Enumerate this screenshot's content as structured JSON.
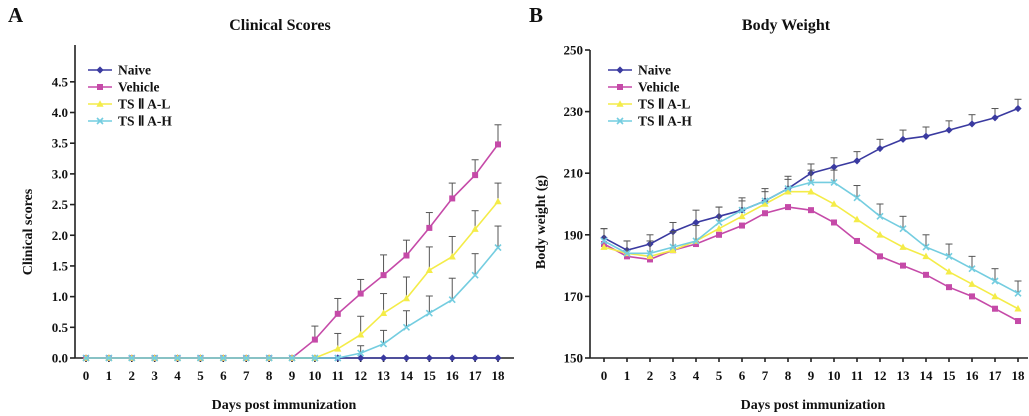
{
  "chart_data": [
    {
      "panel": "A",
      "type": "line",
      "title": "Clinical Scores",
      "xlabel": "Days post immunization",
      "ylabel": "Clinical scores",
      "x": [
        0,
        1,
        2,
        3,
        4,
        5,
        6,
        7,
        8,
        9,
        10,
        11,
        12,
        13,
        14,
        15,
        16,
        17,
        18
      ],
      "x_ticks": [
        "0",
        "1",
        "2",
        "3",
        "4",
        "5",
        "6",
        "7",
        "8",
        "9",
        "10",
        "11",
        "12",
        "13",
        "14",
        "15",
        "16",
        "17",
        "18"
      ],
      "ylim": [
        0,
        5.1
      ],
      "y_ticks": [
        "0.0",
        "0.5",
        "1.0",
        "1.5",
        "2.0",
        "2.5",
        "3.0",
        "3.5",
        "4.0",
        "4.5"
      ],
      "grid": false,
      "legend_position": "top-left",
      "series": [
        {
          "name": "Naive",
          "color": "#3a3aa0",
          "marker": "diamond",
          "values": [
            0,
            0,
            0,
            0,
            0,
            0,
            0,
            0,
            0,
            0,
            0,
            0,
            0,
            0,
            0,
            0,
            0,
            0,
            0
          ],
          "errors": [
            0,
            0,
            0,
            0,
            0,
            0,
            0,
            0,
            0,
            0,
            0,
            0,
            0,
            0,
            0,
            0,
            0,
            0,
            0
          ]
        },
        {
          "name": "Vehicle",
          "color": "#c54aa8",
          "marker": "square",
          "values": [
            0,
            0,
            0,
            0,
            0,
            0,
            0,
            0,
            0,
            0,
            0.3,
            0.72,
            1.05,
            1.35,
            1.67,
            2.12,
            2.6,
            2.98,
            3.48
          ],
          "errors": [
            0,
            0,
            0,
            0,
            0,
            0,
            0,
            0,
            0,
            0,
            0.22,
            0.25,
            0.23,
            0.33,
            0.25,
            0.25,
            0.25,
            0.25,
            0.32
          ]
        },
        {
          "name": "TS Ⅱ A-L",
          "color": "#f4ec48",
          "marker": "triangle",
          "values": [
            0,
            0,
            0,
            0,
            0,
            0,
            0,
            0,
            0,
            0,
            0,
            0.15,
            0.38,
            0.73,
            0.97,
            1.43,
            1.65,
            2.1,
            2.55
          ],
          "errors": [
            0,
            0,
            0,
            0,
            0,
            0,
            0,
            0,
            0,
            0,
            0,
            0.25,
            0.3,
            0.32,
            0.35,
            0.38,
            0.33,
            0.3,
            0.3
          ]
        },
        {
          "name": "TS Ⅱ A-H",
          "color": "#74cde0",
          "marker": "x",
          "values": [
            0,
            0,
            0,
            0,
            0,
            0,
            0,
            0,
            0,
            0,
            0,
            0,
            0.08,
            0.23,
            0.5,
            0.73,
            0.95,
            1.35,
            1.8
          ],
          "errors": [
            0,
            0,
            0,
            0,
            0,
            0,
            0,
            0,
            0,
            0,
            0,
            0,
            0.12,
            0.22,
            0.27,
            0.28,
            0.35,
            0.35,
            0.35
          ]
        }
      ]
    },
    {
      "panel": "B",
      "type": "line",
      "title": "Body Weight",
      "xlabel": "Days post immunization",
      "ylabel": "Body weight (g)",
      "x": [
        0,
        1,
        2,
        3,
        4,
        5,
        6,
        7,
        8,
        9,
        10,
        11,
        12,
        13,
        14,
        15,
        16,
        17,
        18
      ],
      "x_ticks": [
        "0",
        "1",
        "2",
        "3",
        "4",
        "5",
        "6",
        "7",
        "8",
        "9",
        "10",
        "11",
        "12",
        "13",
        "14",
        "15",
        "16",
        "17",
        "18"
      ],
      "ylim": [
        150,
        250
      ],
      "y_ticks": [
        "150",
        "170",
        "190",
        "210",
        "230",
        "250"
      ],
      "grid": false,
      "legend_position": "top-left",
      "series": [
        {
          "name": "Naive",
          "color": "#3a3aa0",
          "marker": "diamond",
          "values": [
            189,
            185,
            187,
            191,
            194,
            196,
            198,
            201,
            205,
            210,
            212,
            214,
            218,
            221,
            222,
            224,
            226,
            228,
            231
          ],
          "errors": [
            3,
            3,
            3,
            3,
            4,
            3,
            3,
            3,
            3,
            3,
            3,
            3,
            3,
            3,
            3,
            3,
            3,
            3,
            3
          ]
        },
        {
          "name": "Vehicle",
          "color": "#c54aa8",
          "marker": "square",
          "values": [
            187,
            183,
            182,
            185,
            187,
            190,
            193,
            197,
            199,
            198,
            194,
            188,
            183,
            180,
            177,
            173,
            170,
            166,
            162
          ]
        },
        {
          "name": "TS Ⅱ A-L",
          "color": "#f4ec48",
          "marker": "triangle",
          "values": [
            186,
            184,
            183,
            185,
            188,
            192,
            196,
            200,
            204,
            204,
            200,
            195,
            190,
            186,
            183,
            178,
            174,
            170,
            166
          ]
        },
        {
          "name": "TS Ⅱ A-H",
          "color": "#74cde0",
          "marker": "x",
          "values": [
            188,
            184,
            184,
            186,
            188,
            194,
            198,
            201,
            205,
            207,
            207,
            202,
            196,
            192,
            186,
            183,
            179,
            175,
            171
          ],
          "errors": [
            4,
            4,
            4,
            5,
            5,
            5,
            4,
            4,
            4,
            4,
            4,
            4,
            4,
            4,
            4,
            4,
            4,
            4,
            4
          ]
        }
      ]
    }
  ]
}
